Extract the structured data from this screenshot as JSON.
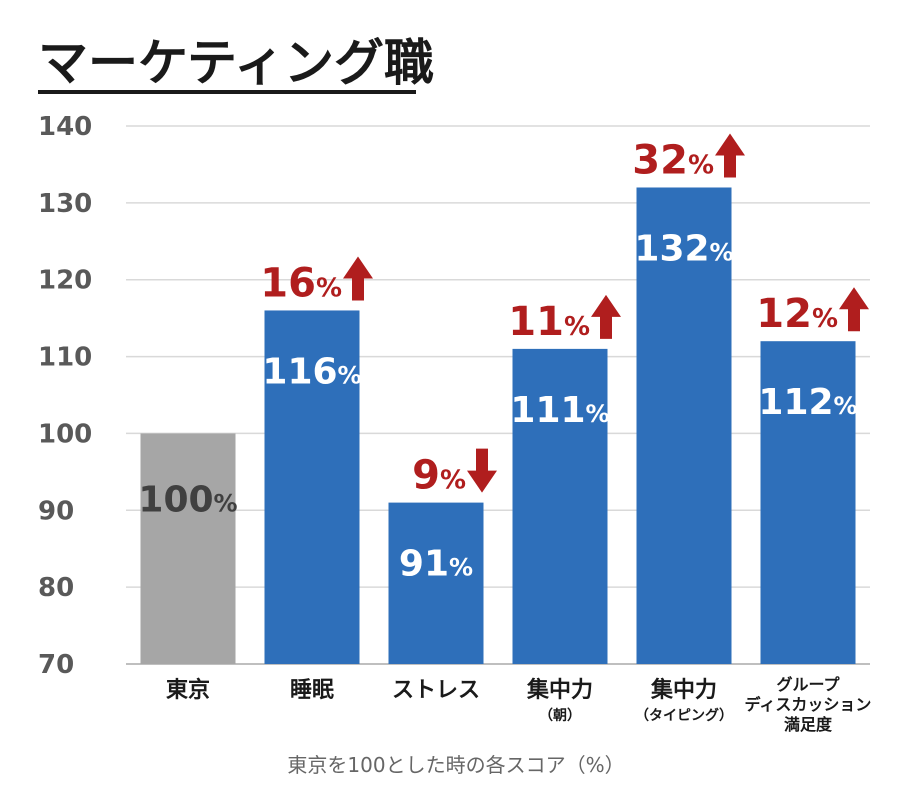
{
  "chart_data": {
    "type": "bar",
    "title": "マーケティング職",
    "xlabel": "東京を100とした時の各スコア（%）",
    "ylabel": "",
    "ylim": [
      70,
      140
    ],
    "yticks": [
      "140",
      "130",
      "120",
      "110",
      "100",
      "90",
      "80",
      "70"
    ],
    "grid": true,
    "categories": [
      {
        "label": "東京",
        "sub": ""
      },
      {
        "label": "睡眠",
        "sub": ""
      },
      {
        "label": "ストレス",
        "sub": ""
      },
      {
        "label": "集中力",
        "sub": "（朝）"
      },
      {
        "label": "集中力",
        "sub": "（タイピング）"
      },
      {
        "label": "グループ\nディスカッション\n満足度",
        "sub": ""
      }
    ],
    "values": [
      100,
      116,
      91,
      111,
      132,
      112
    ],
    "value_labels": [
      {
        "num": "100",
        "unit": "%"
      },
      {
        "num": "116",
        "unit": "%"
      },
      {
        "num": "91",
        "unit": "%"
      },
      {
        "num": "111",
        "unit": "%"
      },
      {
        "num": "132",
        "unit": "%"
      },
      {
        "num": "112",
        "unit": "%"
      }
    ],
    "changes": [
      null,
      {
        "num": "16",
        "unit": "%",
        "direction": "up"
      },
      {
        "num": "9",
        "unit": "%",
        "direction": "down"
      },
      {
        "num": "11",
        "unit": "%",
        "direction": "up"
      },
      {
        "num": "32",
        "unit": "%",
        "direction": "up"
      },
      {
        "num": "12",
        "unit": "%",
        "direction": "up"
      }
    ],
    "colors": {
      "baseline_bar": "#a6a6a6",
      "bar": "#2e6fba",
      "change": "#b01e1e",
      "baseline_label": "#404040",
      "bar_label": "#ffffff",
      "grid": "#d9d9d9"
    }
  }
}
